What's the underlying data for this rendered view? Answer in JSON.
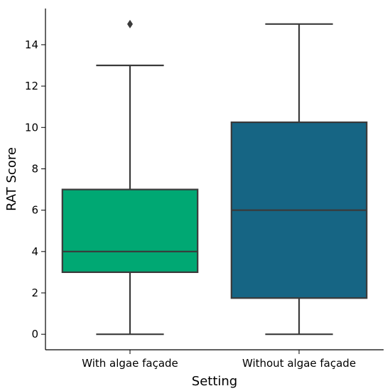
{
  "chart_data": {
    "type": "box",
    "title": "",
    "xlabel": "Setting",
    "ylabel": "RAT Score",
    "categories": [
      "With algae façade",
      "Without algae façade"
    ],
    "ylim": [
      -0.75,
      15.75
    ],
    "yticks": [
      0,
      2,
      4,
      6,
      8,
      10,
      12,
      14
    ],
    "grid": false,
    "legend": "none",
    "boxes": [
      {
        "category": "With algae façade",
        "whisker_low": 0,
        "q1": 3,
        "median": 4,
        "q3": 7,
        "whisker_high": 13,
        "outliers": [
          15
        ],
        "color": "#00a873"
      },
      {
        "category": "Without algae façade",
        "whisker_low": 0,
        "q1": 1.75,
        "median": 6,
        "q3": 10.25,
        "whisker_high": 15,
        "outliers": [],
        "color": "#166584"
      }
    ]
  },
  "colors": {
    "line": "#3a3a3a",
    "axis": "#000000"
  }
}
